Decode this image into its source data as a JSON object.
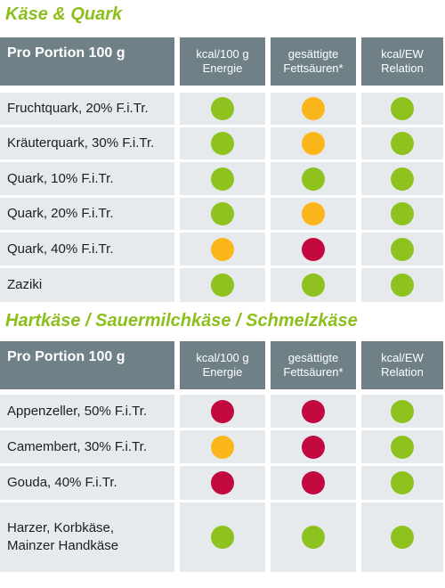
{
  "colors": {
    "green": "#8dc21f",
    "orange": "#fbb61b",
    "red": "#c1093f",
    "header": "#6f8087",
    "row": "#e6eaec",
    "title": "#8cbf1c"
  },
  "sections": [
    {
      "title": "Käse & Quark",
      "headers": [
        "Pro Portion 100 g",
        "kcal/100 g\nEnergie",
        "gesättigte\nFettsäuren*",
        "kcal/EW\nRelation"
      ],
      "rows": [
        {
          "label": "Fruchtquark, 20% F.i.Tr.",
          "ratings": [
            "green",
            "orange",
            "green"
          ]
        },
        {
          "label": "Kräuterquark, 30% F.i.Tr.",
          "ratings": [
            "green",
            "orange",
            "green"
          ]
        },
        {
          "label": "Quark, 10% F.i.Tr.",
          "ratings": [
            "green",
            "green",
            "green"
          ]
        },
        {
          "label": "Quark, 20% F.i.Tr.",
          "ratings": [
            "green",
            "orange",
            "green"
          ]
        },
        {
          "label": "Quark, 40% F.i.Tr.",
          "ratings": [
            "orange",
            "red",
            "green"
          ]
        },
        {
          "label": "Zaziki",
          "ratings": [
            "green",
            "green",
            "green"
          ]
        }
      ]
    },
    {
      "title": "Hartkäse / Sauermilchkäse / Schmelzkäse",
      "headers": [
        "Pro Portion 100 g",
        "kcal/100 g\nEnergie",
        "gesättigte\nFettsäuren*",
        "kcal/EW\nRelation"
      ],
      "rows": [
        {
          "label": "Appenzeller, 50% F.i.Tr.",
          "ratings": [
            "red",
            "red",
            "green"
          ]
        },
        {
          "label": "Camembert, 30% F.i.Tr.",
          "ratings": [
            "orange",
            "red",
            "green"
          ]
        },
        {
          "label": "Gouda, 40% F.i.Tr.",
          "ratings": [
            "red",
            "red",
            "green"
          ]
        },
        {
          "label": "Harzer, Korbkäse,\nMainzer Handkäse",
          "ratings": [
            "green",
            "green",
            "green"
          ]
        }
      ]
    }
  ]
}
